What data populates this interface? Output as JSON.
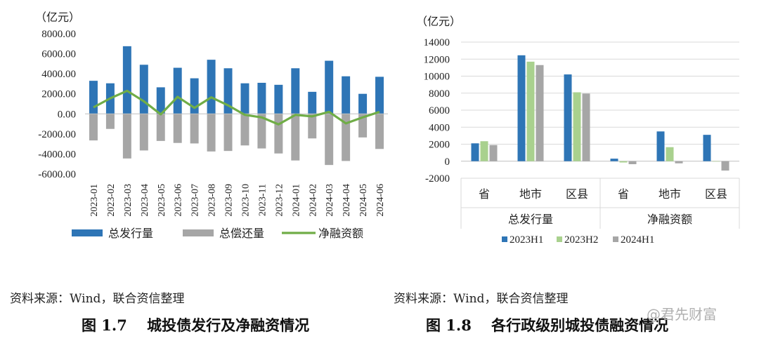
{
  "left_panel": {
    "source": "资料来源：Wind，联合资信整理",
    "caption": "图 1.7　 城投债发行及净融资情况"
  },
  "right_panel": {
    "source": "资料来源：Wind，联合资信整理",
    "caption": "图 1.8　 各行政级别城投债融资情况"
  },
  "watermark": "@君先财富",
  "chart_data": [
    {
      "type": "bar",
      "unit_label": "（亿元）",
      "categories": [
        "2023-01",
        "2023-02",
        "2023-03",
        "2023-04",
        "2023-05",
        "2023-06",
        "2023-07",
        "2023-08",
        "2023-09",
        "2023-10",
        "2023-11",
        "2023-12",
        "2024-01",
        "2024-02",
        "2024-03",
        "2024-04",
        "2024-05",
        "2024-06"
      ],
      "ylim": [
        -6000,
        8000
      ],
      "yticks": [
        "8000.00",
        "6000.00",
        "4000.00",
        "2000.00",
        "0.00",
        "-2000.00",
        "-4000.00",
        "-6000.00"
      ],
      "series": [
        {
          "name": "总发行量",
          "kind": "bar",
          "color": "#2e75b6",
          "values": [
            3300,
            3050,
            6750,
            4900,
            2650,
            4600,
            3550,
            5400,
            4550,
            3050,
            3100,
            2900,
            4550,
            2200,
            5300,
            3750,
            2000,
            3700
          ]
        },
        {
          "name": "总偿还量",
          "kind": "bar",
          "color": "#a6a6a6",
          "values": [
            -2650,
            -1500,
            -4450,
            -3650,
            -2700,
            -2900,
            -2950,
            -3750,
            -3700,
            -3150,
            -3450,
            -3950,
            -4650,
            -2450,
            -5100,
            -4700,
            -2350,
            -3500
          ]
        },
        {
          "name": "净融资额",
          "kind": "line",
          "color": "#70ad47",
          "values": [
            650,
            1550,
            2300,
            1250,
            -50,
            1700,
            600,
            1650,
            850,
            -100,
            -350,
            -1050,
            -100,
            -250,
            200,
            -950,
            -350,
            200
          ]
        }
      ],
      "grid": false,
      "legend": "bottom"
    },
    {
      "type": "bar",
      "unit_label": "（亿元）",
      "groups": [
        "总发行量",
        "净融资额"
      ],
      "categories": [
        "省",
        "地市",
        "区县",
        "省",
        "地市",
        "区县"
      ],
      "ylim": [
        -2000,
        14000
      ],
      "yticks": [
        "14000",
        "12000",
        "10000",
        "8000",
        "6000",
        "4000",
        "2000",
        "0",
        "-2000"
      ],
      "series": [
        {
          "name": "2023H1",
          "color": "#2e75b6",
          "values": [
            2100,
            12450,
            10200,
            300,
            3500,
            3100
          ]
        },
        {
          "name": "2023H2",
          "color": "#a9d18e",
          "values": [
            2350,
            11700,
            8100,
            -150,
            1650,
            0
          ]
        },
        {
          "name": "2024H1",
          "color": "#a6a6a6",
          "values": [
            1900,
            11300,
            7950,
            -350,
            -250,
            -1100
          ]
        }
      ],
      "grid": true,
      "legend": "bottom"
    }
  ]
}
